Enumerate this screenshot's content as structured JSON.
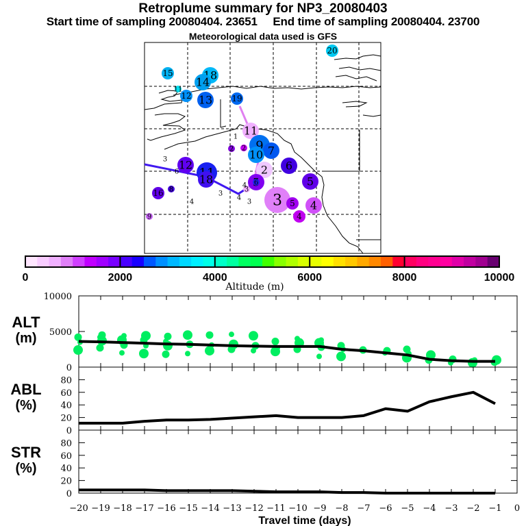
{
  "header": {
    "title": "Retroplume summary for NP3_20080403",
    "sampling": "Start time of sampling 20080404. 23651     End time of sampling 20080404. 23700",
    "met_data": "Meteorological data used is GFS"
  },
  "colors": {
    "colorbar": [
      "#ffe6ff",
      "#f8ccff",
      "#f0b0ff",
      "#e080f8",
      "#d040ff",
      "#c000ff",
      "#a000ff",
      "#7800ff",
      "#4800ff",
      "#1800ff",
      "#0058ff",
      "#0090ff",
      "#00b8ff",
      "#00d8ff",
      "#00f0ff",
      "#00ffe8",
      "#00ffc8",
      "#00ffa0",
      "#00ff60",
      "#00ff50",
      "#40ff00",
      "#88ff00",
      "#b0ff00",
      "#d8ff00",
      "#e8ff00",
      "#ffff00",
      "#ffe000",
      "#ffc800",
      "#ffa800",
      "#ff8800",
      "#ff6000",
      "#ff0030",
      "#ff0060",
      "#ff0080",
      "#ff0090",
      "#ff00a0",
      "#e000a8",
      "#c000a0",
      "#a00090",
      "#680070"
    ],
    "alt_points": "#00ee60",
    "line": "#000000"
  },
  "map": {
    "plumes": [
      {
        "label": "20",
        "color": "#00c8f0",
        "size": "s"
      },
      {
        "label": "15",
        "color": "#00b0f0",
        "size": "s"
      },
      {
        "label": "18",
        "color": "#00b8f8",
        "size": "m"
      },
      {
        "label": "14",
        "color": "#00a0f0",
        "size": "m"
      },
      {
        "label": "11",
        "color": "#00e0f0",
        "size": "xs"
      },
      {
        "label": "12",
        "color": "#0090f8",
        "size": "s"
      },
      {
        "label": "13",
        "color": "#0060f0",
        "size": "m"
      },
      {
        "label": "19",
        "color": "#0068f0",
        "size": "s"
      },
      {
        "label": "11",
        "color": "#f0b0ff",
        "size": "m"
      },
      {
        "label": "1",
        "color": "#ffffff",
        "size": "xs"
      },
      {
        "label": "2",
        "color": "#c000f0",
        "size": "xs"
      },
      {
        "label": "2",
        "color": "#8000e0",
        "size": "xs"
      },
      {
        "label": "9",
        "color": "#0070f0",
        "size": "l"
      },
      {
        "label": "7",
        "color": "#0058f0",
        "size": "m"
      },
      {
        "label": "10",
        "color": "#0090f8",
        "size": "m"
      },
      {
        "label": "2",
        "color": "#f0c8ff",
        "size": "m"
      },
      {
        "label": "6",
        "color": "#4000e0",
        "size": "m"
      },
      {
        "label": "3",
        "color": "#ffffff",
        "size": "xs"
      },
      {
        "label": "12",
        "color": "#6000f0",
        "size": "m"
      },
      {
        "label": "11",
        "color": "#1820f0",
        "size": "l"
      },
      {
        "label": "6",
        "color": "#ffffff",
        "size": "xs"
      },
      {
        "label": "18",
        "color": "#4010f0",
        "size": "m"
      },
      {
        "label": "5",
        "color": "#8000f0",
        "size": "m"
      },
      {
        "label": "6",
        "color": "#2020f0",
        "size": "xs"
      },
      {
        "label": "5",
        "color": "#6000e8",
        "size": "m"
      },
      {
        "label": "16",
        "color": "#6000e8",
        "size": "s"
      },
      {
        "label": "8",
        "color": "#4000e0",
        "size": "xs"
      },
      {
        "label": "4",
        "color": "#ffffff",
        "size": "xs"
      },
      {
        "label": "3",
        "color": "#ffffff",
        "size": "xs"
      },
      {
        "label": "4",
        "color": "#ffffff",
        "size": "xs"
      },
      {
        "label": "3",
        "color": "#f0b0ff",
        "size": "xs"
      },
      {
        "label": "3",
        "color": "#ffffff",
        "size": "xs"
      },
      {
        "label": "3",
        "color": "#e080f8",
        "size": "xl"
      },
      {
        "label": "5",
        "color": "#a000f0",
        "size": "s"
      },
      {
        "label": "4",
        "color": "#d050f8",
        "size": "m"
      },
      {
        "label": "4",
        "color": "#c000f0",
        "size": "s"
      },
      {
        "label": "9",
        "color": "#c060f0",
        "size": "xs"
      },
      {
        "label": "4",
        "color": "#ffffff",
        "size": "xs"
      }
    ]
  },
  "colorbar": {
    "ticks": [
      "0",
      "2000",
      "4000",
      "6000",
      "8000",
      "10000"
    ],
    "label": "Altitude (m)"
  },
  "chart_data": [
    {
      "type": "line",
      "panel": "ALT",
      "ylabel": "ALT (m)",
      "ylabel_lines": [
        "ALT",
        "(m)"
      ],
      "ylim": [
        0,
        10000
      ],
      "yticks": [
        "0",
        "5000",
        "10000"
      ],
      "x": [
        -20,
        -19,
        -18,
        -17,
        -16,
        -15,
        -14,
        -13,
        -12,
        -11,
        -10,
        -9,
        -8,
        -7,
        -6,
        -5,
        -4,
        -3,
        -2,
        -1
      ],
      "series": [
        {
          "name": "mean altitude",
          "values": [
            3600,
            3550,
            3450,
            3350,
            3250,
            3200,
            3100,
            3000,
            2950,
            2900,
            2900,
            2900,
            2500,
            2300,
            2000,
            1700,
            1100,
            900,
            800,
            800
          ]
        }
      ],
      "scatter_points": [
        {
          "x": -20,
          "y": [
            2400,
            3500,
            4200
          ]
        },
        {
          "x": -19,
          "y": [
            2700,
            3700,
            4200,
            4500
          ]
        },
        {
          "x": -18,
          "y": [
            2000,
            3100,
            3800,
            4400
          ]
        },
        {
          "x": -17,
          "y": [
            1900,
            3000,
            3800,
            4400
          ]
        },
        {
          "x": -16,
          "y": [
            1800,
            3000,
            3600,
            4300
          ]
        },
        {
          "x": -15,
          "y": [
            1900,
            3200,
            4500
          ]
        },
        {
          "x": -14,
          "y": [
            2300,
            3100,
            4500
          ]
        },
        {
          "x": -13,
          "y": [
            2500,
            3200,
            4600
          ]
        },
        {
          "x": -12,
          "y": [
            2300,
            3000,
            4400
          ]
        },
        {
          "x": -11,
          "y": [
            2200,
            2700,
            3600
          ]
        },
        {
          "x": -10,
          "y": [
            2500,
            3400,
            4000
          ]
        },
        {
          "x": -9,
          "y": [
            1500,
            2800,
            3400,
            3800
          ]
        },
        {
          "x": -8,
          "y": [
            1500,
            2500,
            3000
          ]
        },
        {
          "x": -7,
          "y": [
            2400
          ]
        },
        {
          "x": -6,
          "y": [
            2000,
            2300
          ]
        },
        {
          "x": -5,
          "y": [
            1300,
            1900,
            2500
          ]
        },
        {
          "x": -4,
          "y": [
            1000,
            1700
          ]
        },
        {
          "x": -3,
          "y": [
            600,
            1100
          ]
        },
        {
          "x": -2,
          "y": [
            600,
            1000
          ]
        },
        {
          "x": -1,
          "y": [
            700,
            1000
          ]
        }
      ]
    },
    {
      "type": "line",
      "panel": "ABL",
      "ylabel": "ABL (%)",
      "ylabel_lines": [
        "ABL",
        "(%)"
      ],
      "ylim": [
        0,
        100
      ],
      "yticks": [
        "0",
        "20",
        "40",
        "60",
        "80"
      ],
      "x": [
        -20,
        -19,
        -18,
        -17,
        -16,
        -15,
        -14,
        -13,
        -12,
        -11,
        -10,
        -9,
        -8,
        -7,
        -6,
        -5,
        -4,
        -3,
        -2,
        -1
      ],
      "series": [
        {
          "name": "ABL fraction",
          "values": [
            11,
            11,
            11,
            14,
            16,
            16,
            17,
            19,
            21,
            23,
            20,
            20,
            20,
            23,
            34,
            30,
            45,
            53,
            60,
            42
          ]
        }
      ]
    },
    {
      "type": "line",
      "panel": "STR",
      "ylabel": "STR (%)",
      "ylabel_lines": [
        "STR",
        "(%)"
      ],
      "ylim": [
        0,
        100
      ],
      "yticks": [
        "0",
        "20",
        "40",
        "60",
        "80"
      ],
      "x": [
        -20,
        -19,
        -18,
        -17,
        -16,
        -15,
        -14,
        -13,
        -12,
        -11,
        -10,
        -9,
        -8,
        -7,
        -6,
        -5,
        -4,
        -3,
        -2,
        -1
      ],
      "series": [
        {
          "name": "STR fraction",
          "values": [
            5,
            5,
            5,
            5,
            4,
            4,
            4,
            4,
            3,
            2,
            2,
            2,
            1,
            1,
            0,
            0,
            0,
            0,
            0,
            0
          ]
        }
      ],
      "xlabel": "Travel time (days)",
      "xticks": [
        "-20",
        "-19",
        "-18",
        "-17",
        "-16",
        "-15",
        "-14",
        "-13",
        "-12",
        "-11",
        "-10",
        "-9",
        "-8",
        "-7",
        "-6",
        "-5",
        "-4",
        "-3",
        "-2",
        "-1",
        "0"
      ],
      "xlim": [
        -20,
        0
      ]
    }
  ]
}
